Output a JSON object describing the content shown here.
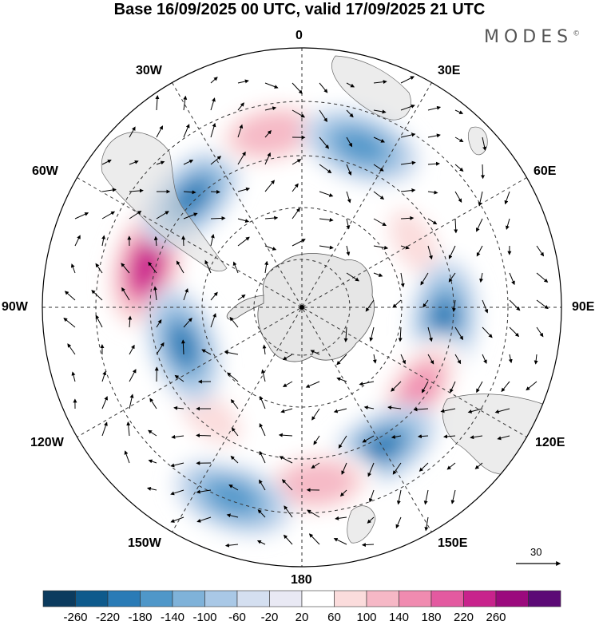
{
  "title": "Base 16/09/2025 00 UTC, valid 17/09/2025 21 UTC",
  "brand": {
    "name": "MODES",
    "mark": "©"
  },
  "map": {
    "projection": "south polar stereographic",
    "longitude_labels": {
      "n": "0",
      "ne": "30E",
      "nne": "60E",
      "e": "90E",
      "ese": "120E",
      "sse": "150E",
      "s": "180",
      "ssw": "150W",
      "wsw": "120W",
      "w": "90W",
      "wnw": "60W",
      "nnw": "30W"
    },
    "reference_vector": {
      "value": "30"
    },
    "anomalies": [
      {
        "name": "pos-1",
        "lon_deg": -75,
        "radius_frac": 0.62,
        "value": 260
      },
      {
        "name": "neg-1",
        "lon_deg": -45,
        "radius_frac": 0.6,
        "value": -180
      },
      {
        "name": "pos-2",
        "lon_deg": -10,
        "radius_frac": 0.68,
        "value": 140
      },
      {
        "name": "neg-2",
        "lon_deg": 20,
        "radius_frac": 0.66,
        "value": -140
      },
      {
        "name": "pos-3",
        "lon_deg": 60,
        "radius_frac": 0.5,
        "value": 100
      },
      {
        "name": "neg-3",
        "lon_deg": 95,
        "radius_frac": 0.55,
        "value": -180
      },
      {
        "name": "pos-4",
        "lon_deg": 125,
        "radius_frac": 0.55,
        "value": 180
      },
      {
        "name": "neg-4",
        "lon_deg": 150,
        "radius_frac": 0.62,
        "value": -180
      },
      {
        "name": "pos-5",
        "lon_deg": 175,
        "radius_frac": 0.68,
        "value": 140
      },
      {
        "name": "neg-5",
        "lon_deg": -160,
        "radius_frac": 0.78,
        "value": -140
      },
      {
        "name": "pos-6",
        "lon_deg": -140,
        "radius_frac": 0.55,
        "value": 100
      },
      {
        "name": "neg-6",
        "lon_deg": -108,
        "radius_frac": 0.48,
        "value": -180
      }
    ]
  },
  "colorbar": {
    "labels": [
      "-260",
      "-220",
      "-180",
      "-140",
      "-100",
      "-60",
      "-20",
      "20",
      "60",
      "100",
      "140",
      "180",
      "220",
      "260"
    ],
    "colors": [
      "#0b3b5e",
      "#0e5a8c",
      "#2a7bb6",
      "#4f97c9",
      "#7fb2d9",
      "#a9c8e6",
      "#d4dff0",
      "#e9e9f4",
      "#ffffff",
      "#fbdcdc",
      "#f6b8c6",
      "#f08bb0",
      "#e35aa0",
      "#c8238c",
      "#9b0a7d",
      "#5c0a76"
    ]
  }
}
